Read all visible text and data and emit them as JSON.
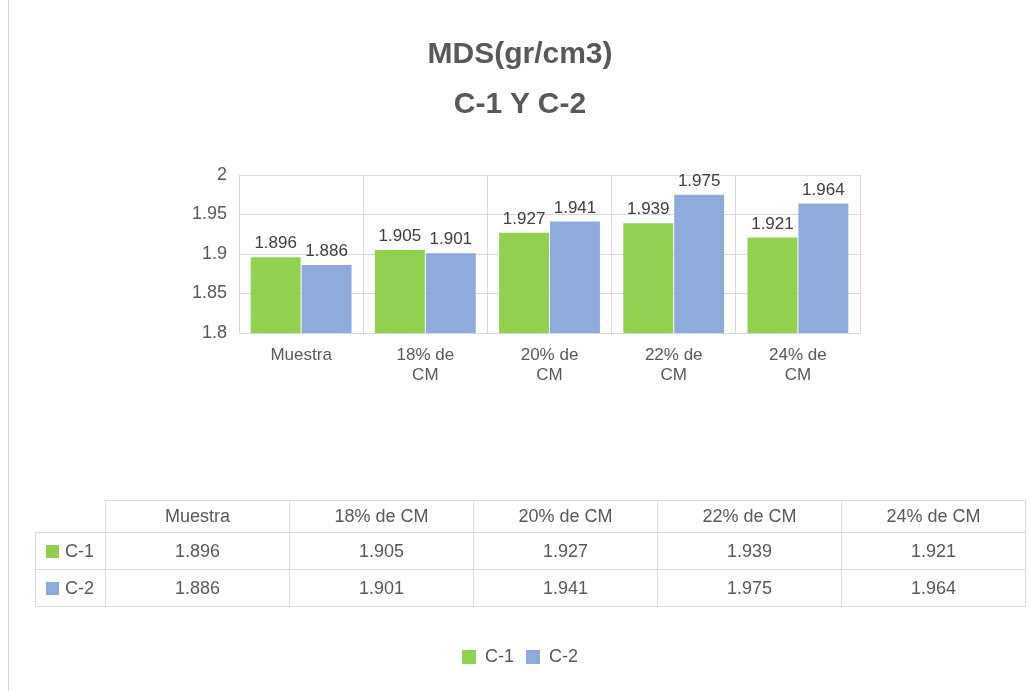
{
  "chart_data": [
    {
      "type": "bar",
      "title": "MDS(gr/cm3)",
      "subtitle": "C-1 Y C-2",
      "categories": [
        "Muestra",
        "18% de CM",
        "20% de CM",
        "22% de CM",
        "24% de CM"
      ],
      "series": [
        {
          "name": "C-1",
          "color": "#92d050",
          "values": [
            1.896,
            1.905,
            1.927,
            1.939,
            1.921
          ]
        },
        {
          "name": "C-2",
          "color": "#8eaadb",
          "values": [
            1.886,
            1.901,
            1.941,
            1.975,
            1.964
          ]
        }
      ],
      "ylim": [
        1.8,
        2
      ],
      "yticks": [
        1.8,
        1.85,
        1.9,
        1.95,
        2
      ],
      "grid": true,
      "legend": "bottom",
      "data_labels": true
    },
    {
      "type": "other",
      "categories": [
        "Muestra",
        "18% de CM",
        "20% de CM",
        "22% de CM",
        "24% de CM"
      ],
      "series": [
        {
          "name": "C-1",
          "color": "#92d050",
          "values": [
            1.896,
            1.905,
            1.927,
            1.939,
            1.921
          ]
        },
        {
          "name": "C-2",
          "color": "#8eaadb",
          "values": [
            1.886,
            1.901,
            1.941,
            1.975,
            1.964
          ]
        }
      ],
      "data_labels": true
    }
  ]
}
